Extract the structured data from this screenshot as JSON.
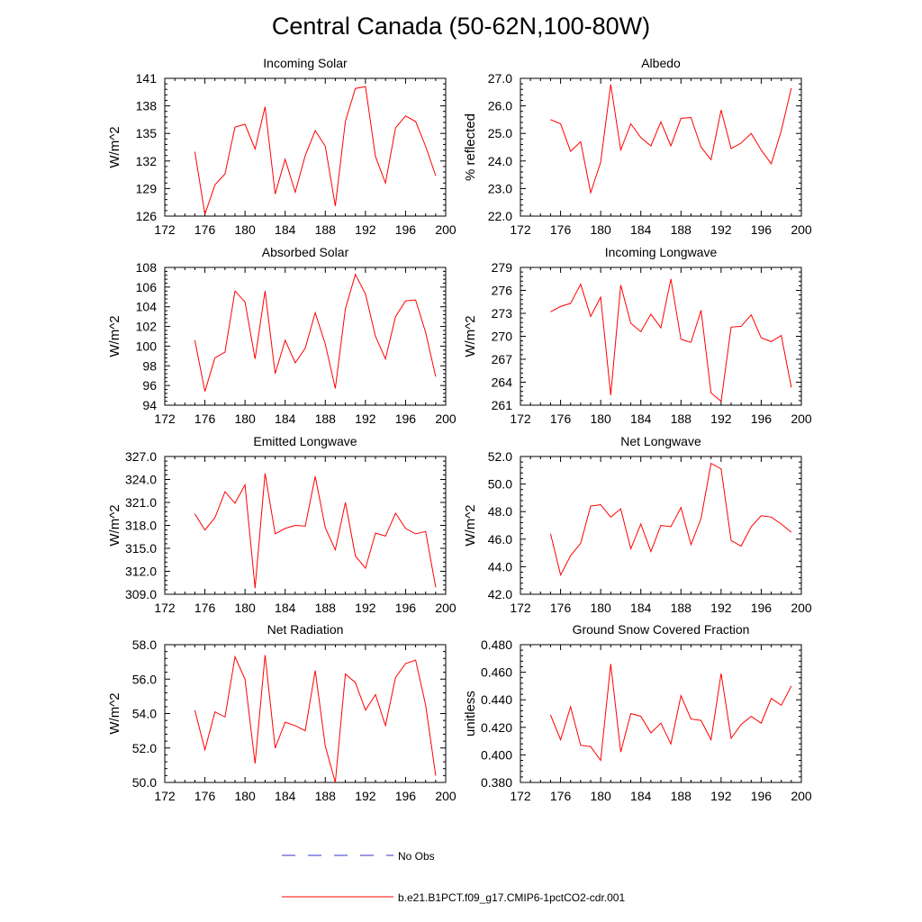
{
  "title": "Central Canada (50-62N,100-80W)",
  "legend": {
    "entries": [
      {
        "label": "No Obs",
        "color": "#3333cc",
        "style": "dashed"
      },
      {
        "label": "b.e21.B1PCT.f09_g17.CMIP6-1pctCO2-cdr.001",
        "color": "#ff0000",
        "style": "solid"
      }
    ]
  },
  "chart_data": [
    {
      "type": "line",
      "title": "Incoming Solar",
      "ylabel": "W/m^2",
      "xlim": [
        172,
        200
      ],
      "ylim": [
        126,
        141
      ],
      "xticks": [
        172,
        176,
        180,
        184,
        188,
        192,
        196,
        200
      ],
      "yticks": [
        126,
        129,
        132,
        135,
        138,
        141
      ],
      "ytick_labels": [
        "126",
        "129",
        "132",
        "135",
        "138",
        "141"
      ],
      "color": "#ff0000",
      "x": [
        175,
        176,
        177,
        178,
        179,
        180,
        181,
        182,
        183,
        184,
        185,
        186,
        187,
        188,
        189,
        190,
        191,
        192,
        193,
        194,
        195,
        196,
        197,
        198,
        199
      ],
      "y": [
        133.0,
        126.2,
        129.4,
        130.6,
        135.7,
        136.0,
        133.3,
        137.9,
        128.4,
        132.2,
        128.6,
        132.6,
        135.3,
        133.6,
        127.1,
        136.3,
        139.9,
        140.1,
        132.5,
        129.6,
        135.6,
        136.9,
        136.3,
        133.6,
        130.4
      ]
    },
    {
      "type": "line",
      "title": "Albedo",
      "ylabel": "% reflected",
      "xlim": [
        172,
        200
      ],
      "ylim": [
        22.0,
        27.0
      ],
      "xticks": [
        172,
        176,
        180,
        184,
        188,
        192,
        196,
        200
      ],
      "yticks": [
        22.0,
        23.0,
        24.0,
        25.0,
        26.0,
        27.0
      ],
      "ytick_labels": [
        "22.0",
        "23.0",
        "24.0",
        "25.0",
        "26.0",
        "27.0"
      ],
      "color": "#ff0000",
      "x": [
        175,
        176,
        177,
        178,
        179,
        180,
        181,
        182,
        183,
        184,
        185,
        186,
        187,
        188,
        189,
        190,
        191,
        192,
        193,
        194,
        195,
        196,
        197,
        198,
        199
      ],
      "y": [
        25.5,
        25.35,
        24.35,
        24.7,
        22.85,
        23.95,
        26.78,
        24.4,
        25.35,
        24.85,
        24.55,
        25.42,
        24.55,
        25.55,
        25.58,
        24.5,
        24.05,
        25.85,
        24.45,
        24.65,
        25.0,
        24.4,
        23.9,
        25.1,
        26.65
      ]
    },
    {
      "type": "line",
      "title": "Absorbed Solar",
      "ylabel": "W/m^2",
      "xlim": [
        172,
        200
      ],
      "ylim": [
        94,
        108
      ],
      "xticks": [
        172,
        176,
        180,
        184,
        188,
        192,
        196,
        200
      ],
      "yticks": [
        94,
        96,
        98,
        100,
        102,
        104,
        106,
        108
      ],
      "ytick_labels": [
        "94",
        "96",
        "98",
        "100",
        "102",
        "104",
        "106",
        "108"
      ],
      "color": "#ff0000",
      "x": [
        175,
        176,
        177,
        178,
        179,
        180,
        181,
        182,
        183,
        184,
        185,
        186,
        187,
        188,
        189,
        190,
        191,
        192,
        193,
        194,
        195,
        196,
        197,
        198,
        199
      ],
      "y": [
        100.6,
        95.4,
        98.8,
        99.4,
        105.6,
        104.5,
        98.7,
        105.6,
        97.2,
        100.6,
        98.3,
        99.8,
        103.4,
        100.2,
        95.7,
        103.8,
        107.3,
        105.3,
        101.0,
        98.7,
        103.0,
        104.6,
        104.7,
        101.4,
        96.9
      ]
    },
    {
      "type": "line",
      "title": "Incoming Longwave",
      "ylabel": "W/m^2",
      "xlim": [
        172,
        200
      ],
      "ylim": [
        261,
        279
      ],
      "xticks": [
        172,
        176,
        180,
        184,
        188,
        192,
        196,
        200
      ],
      "yticks": [
        261,
        264,
        267,
        270,
        273,
        276,
        279
      ],
      "ytick_labels": [
        "261",
        "264",
        "267",
        "270",
        "273",
        "276",
        "279"
      ],
      "color": "#ff0000",
      "x": [
        175,
        176,
        177,
        178,
        179,
        180,
        181,
        182,
        183,
        184,
        185,
        186,
        187,
        188,
        189,
        190,
        191,
        192,
        193,
        194,
        195,
        196,
        197,
        198,
        199
      ],
      "y": [
        273.2,
        273.9,
        274.3,
        276.8,
        272.6,
        275.1,
        262.3,
        276.7,
        271.7,
        270.6,
        272.9,
        271.1,
        277.5,
        269.6,
        269.2,
        273.4,
        262.6,
        261.5,
        271.2,
        271.3,
        272.8,
        269.8,
        269.3,
        270.1,
        263.3
      ]
    },
    {
      "type": "line",
      "title": "Emitted Longwave",
      "ylabel": "W/m^2",
      "xlim": [
        172,
        200
      ],
      "ylim": [
        309.0,
        327.0
      ],
      "xticks": [
        172,
        176,
        180,
        184,
        188,
        192,
        196,
        200
      ],
      "yticks": [
        309,
        312,
        315,
        318,
        321,
        324,
        327
      ],
      "ytick_labels": [
        "309.0",
        "312.0",
        "315.0",
        "318.0",
        "321.0",
        "324.0",
        "327.0"
      ],
      "color": "#ff0000",
      "x": [
        175,
        176,
        177,
        178,
        179,
        180,
        181,
        182,
        183,
        184,
        185,
        186,
        187,
        188,
        189,
        190,
        191,
        192,
        193,
        194,
        195,
        196,
        197,
        198,
        199
      ],
      "y": [
        319.5,
        317.4,
        319.0,
        322.4,
        320.9,
        323.3,
        309.8,
        324.8,
        316.9,
        317.6,
        318.0,
        317.9,
        324.4,
        317.7,
        314.8,
        321.0,
        314.0,
        312.4,
        317.0,
        316.6,
        319.6,
        317.6,
        316.9,
        317.2,
        309.9
      ]
    },
    {
      "type": "line",
      "title": "Net Longwave",
      "ylabel": "W/m^2",
      "xlim": [
        172,
        200
      ],
      "ylim": [
        42.0,
        52.0
      ],
      "xticks": [
        172,
        176,
        180,
        184,
        188,
        192,
        196,
        200
      ],
      "yticks": [
        42,
        44,
        46,
        48,
        50,
        52
      ],
      "ytick_labels": [
        "42.0",
        "44.0",
        "46.0",
        "48.0",
        "50.0",
        "52.0"
      ],
      "color": "#ff0000",
      "x": [
        175,
        176,
        177,
        178,
        179,
        180,
        181,
        182,
        183,
        184,
        185,
        186,
        187,
        188,
        189,
        190,
        191,
        192,
        193,
        194,
        195,
        196,
        197,
        198,
        199
      ],
      "y": [
        46.4,
        43.4,
        44.8,
        45.7,
        48.4,
        48.5,
        47.6,
        48.2,
        45.3,
        47.1,
        45.1,
        47.0,
        46.9,
        48.3,
        45.6,
        47.5,
        51.5,
        51.1,
        45.9,
        45.5,
        46.9,
        47.7,
        47.6,
        47.1,
        46.5
      ]
    },
    {
      "type": "line",
      "title": "Net Radiation",
      "ylabel": "W/m^2",
      "xlim": [
        172,
        200
      ],
      "ylim": [
        50.0,
        58.0
      ],
      "xticks": [
        172,
        176,
        180,
        184,
        188,
        192,
        196,
        200
      ],
      "yticks": [
        50,
        52,
        54,
        56,
        58
      ],
      "ytick_labels": [
        "50.0",
        "52.0",
        "54.0",
        "56.0",
        "58.0"
      ],
      "color": "#ff0000",
      "x": [
        175,
        176,
        177,
        178,
        179,
        180,
        181,
        182,
        183,
        184,
        185,
        186,
        187,
        188,
        189,
        190,
        191,
        192,
        193,
        194,
        195,
        196,
        197,
        198,
        199
      ],
      "y": [
        54.2,
        51.9,
        54.1,
        53.8,
        57.3,
        56.0,
        51.1,
        57.4,
        52.0,
        53.5,
        53.3,
        53.0,
        56.5,
        52.1,
        50.0,
        56.3,
        55.8,
        54.2,
        55.1,
        53.3,
        56.1,
        56.9,
        57.1,
        54.5,
        50.4
      ]
    },
    {
      "type": "line",
      "title": "Ground Snow Covered Fraction",
      "ylabel": "unitless",
      "xlim": [
        172,
        200
      ],
      "ylim": [
        0.38,
        0.48
      ],
      "xticks": [
        172,
        176,
        180,
        184,
        188,
        192,
        196,
        200
      ],
      "yticks": [
        0.38,
        0.4,
        0.42,
        0.44,
        0.46,
        0.48
      ],
      "ytick_labels": [
        "0.380",
        "0.400",
        "0.420",
        "0.440",
        "0.460",
        "0.480"
      ],
      "color": "#ff0000",
      "x": [
        175,
        176,
        177,
        178,
        179,
        180,
        181,
        182,
        183,
        184,
        185,
        186,
        187,
        188,
        189,
        190,
        191,
        192,
        193,
        194,
        195,
        196,
        197,
        198,
        199
      ],
      "y": [
        0.429,
        0.411,
        0.435,
        0.407,
        0.406,
        0.396,
        0.466,
        0.402,
        0.43,
        0.428,
        0.416,
        0.423,
        0.408,
        0.443,
        0.426,
        0.425,
        0.411,
        0.459,
        0.412,
        0.422,
        0.428,
        0.423,
        0.441,
        0.436,
        0.45
      ]
    }
  ]
}
